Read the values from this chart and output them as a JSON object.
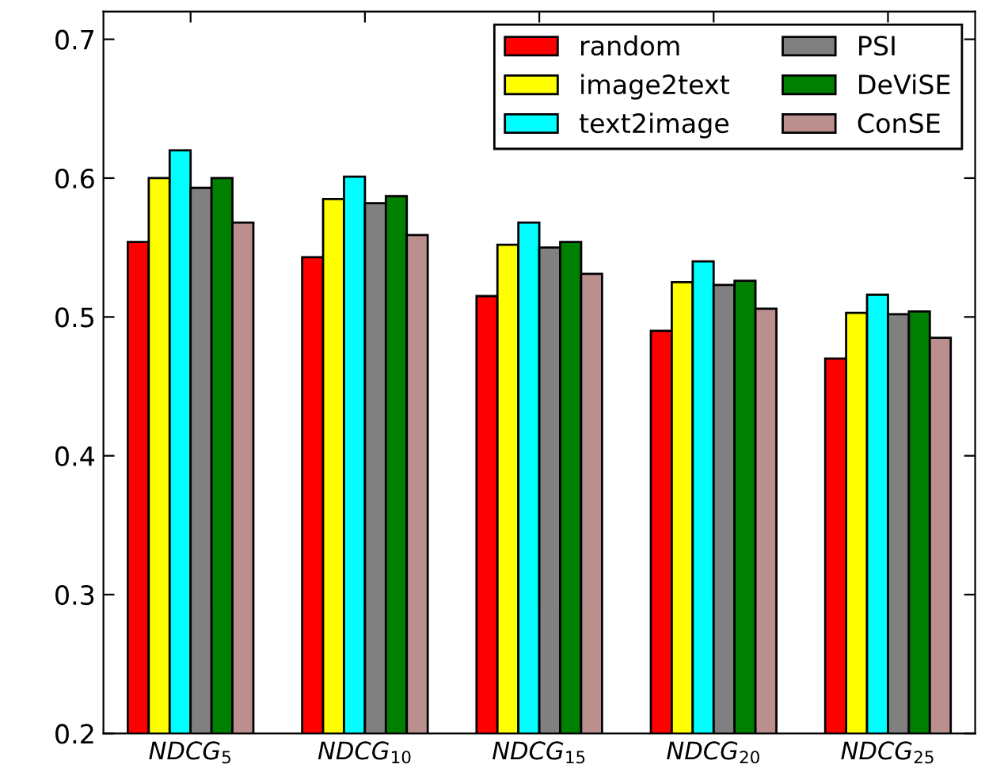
{
  "chart_data": {
    "type": "bar",
    "categories": [
      "NDCG$_{5}$",
      "NDCG$_{10}$",
      "NDCG$_{15}$",
      "NDCG$_{20}$",
      "NDCG$_{25}$"
    ],
    "series": [
      {
        "name": "random",
        "color": "#ff0000",
        "values": [
          0.554,
          0.543,
          0.515,
          0.49,
          0.47
        ]
      },
      {
        "name": "image2text",
        "color": "#ffff00",
        "values": [
          0.6,
          0.585,
          0.552,
          0.525,
          0.503
        ]
      },
      {
        "name": "text2image",
        "color": "#00ffff",
        "values": [
          0.62,
          0.601,
          0.568,
          0.54,
          0.516
        ]
      },
      {
        "name": "PSI",
        "color": "#808080",
        "values": [
          0.593,
          0.582,
          0.55,
          0.523,
          0.502
        ]
      },
      {
        "name": "DeViSE",
        "color": "#008000",
        "values": [
          0.6,
          0.587,
          0.554,
          0.526,
          0.504
        ]
      },
      {
        "name": "ConSE",
        "color": "#bc8f8f",
        "values": [
          0.568,
          0.559,
          0.531,
          0.506,
          0.485
        ]
      }
    ],
    "ylim": [
      0.2,
      0.72
    ],
    "yticks": [
      {
        "value": 0.2,
        "label": "0.2"
      },
      {
        "value": 0.3,
        "label": "0.3"
      },
      {
        "value": 0.4,
        "label": "0.4"
      },
      {
        "value": 0.5,
        "label": "0.5"
      },
      {
        "value": 0.6,
        "label": "0.6"
      },
      {
        "value": 0.7,
        "label": "0.7"
      }
    ],
    "grid": false,
    "legend": "top right"
  }
}
